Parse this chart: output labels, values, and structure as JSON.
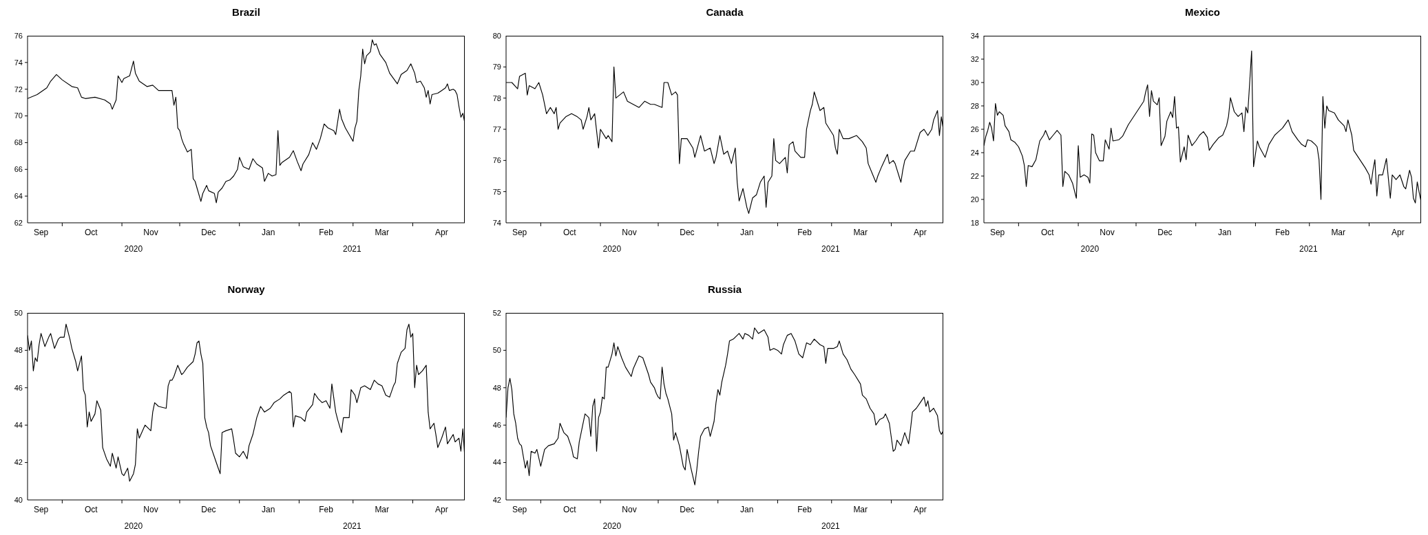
{
  "chart_data": [
    {
      "type": "line",
      "title": "Brazil",
      "color": "#000000",
      "xlim": [
        "2020-09-13",
        "2021-04-28"
      ],
      "ylim": [
        62,
        76
      ],
      "yticks": [
        62,
        64,
        66,
        68,
        70,
        72,
        74,
        76
      ],
      "xticks": [
        {
          "value": "2020-09-20",
          "label": "Sep"
        },
        {
          "value": "2020-10-01",
          "label": null
        },
        {
          "value": "2020-10-16",
          "label": "Oct"
        },
        {
          "value": "2020-11-01",
          "label": null
        },
        {
          "value": "2020-11-16",
          "label": "Nov"
        },
        {
          "value": "2020-12-01",
          "label": null
        },
        {
          "value": "2020-12-16",
          "label": "Dec"
        },
        {
          "value": "2021-01-01",
          "label": null
        },
        {
          "value": "2021-01-16",
          "label": "Jan"
        },
        {
          "value": "2021-02-01",
          "label": null
        },
        {
          "value": "2021-02-15",
          "label": "Feb"
        },
        {
          "value": "2021-03-01",
          "label": null
        },
        {
          "value": "2021-03-16",
          "label": "Mar"
        },
        {
          "value": "2021-04-01",
          "label": null
        },
        {
          "value": "2021-04-16",
          "label": "Apr"
        }
      ],
      "annotations": [
        "2020",
        "2021"
      ],
      "x": [
        "2020-09-13",
        "2020-09-18",
        "2020-09-23",
        "2020-09-25",
        "2020-09-28",
        "2020-10-01",
        "2020-10-06",
        "2020-10-09",
        "2020-10-11",
        "2020-10-13",
        "2020-10-18",
        "2020-10-23",
        "2020-10-26",
        "2020-10-27",
        "2020-10-29",
        "2020-10-30",
        "2020-11-01",
        "2020-11-02",
        "2020-11-05",
        "2020-11-07",
        "2020-11-08",
        "2020-11-10",
        "2020-11-14",
        "2020-11-17",
        "2020-11-20",
        "2020-11-25",
        "2020-11-27",
        "2020-11-28",
        "2020-11-29",
        "2020-11-30",
        "2020-12-01",
        "2020-12-02",
        "2020-12-03",
        "2020-12-05",
        "2020-12-07",
        "2020-12-08",
        "2020-12-09",
        "2020-12-10",
        "2020-12-12",
        "2020-12-13",
        "2020-12-15",
        "2020-12-16",
        "2020-12-19",
        "2020-12-20",
        "2020-12-21",
        "2020-12-23",
        "2020-12-25",
        "2020-12-27",
        "2020-12-29",
        "2020-12-31",
        "2021-01-01",
        "2021-01-03",
        "2021-01-06",
        "2021-01-08",
        "2021-01-10",
        "2021-01-13",
        "2021-01-14",
        "2021-01-16",
        "2021-01-18",
        "2021-01-20",
        "2021-01-21",
        "2021-01-22",
        "2021-01-23",
        "2021-01-27",
        "2021-01-29",
        "2021-01-31",
        "2021-02-02",
        "2021-02-03",
        "2021-02-06",
        "2021-02-08",
        "2021-02-10",
        "2021-02-12",
        "2021-02-14",
        "2021-02-16",
        "2021-02-19",
        "2021-02-20",
        "2021-02-22",
        "2021-02-23",
        "2021-02-25",
        "2021-02-27",
        "2021-03-01",
        "2021-03-02",
        "2021-03-03",
        "2021-03-04",
        "2021-03-05",
        "2021-03-06",
        "2021-03-07",
        "2021-03-08",
        "2021-03-10",
        "2021-03-11",
        "2021-03-12",
        "2021-03-13",
        "2021-03-15",
        "2021-03-18",
        "2021-03-20",
        "2021-03-22",
        "2021-03-24",
        "2021-03-26",
        "2021-03-29",
        "2021-03-31",
        "2021-04-02",
        "2021-04-03",
        "2021-04-05",
        "2021-04-07",
        "2021-04-08",
        "2021-04-09",
        "2021-04-10",
        "2021-04-11",
        "2021-04-14",
        "2021-04-16",
        "2021-04-18",
        "2021-04-19",
        "2021-04-20",
        "2021-04-22",
        "2021-04-23",
        "2021-04-24",
        "2021-04-25",
        "2021-04-26",
        "2021-04-27",
        "2021-04-28"
      ],
      "values": [
        71.3,
        71.6,
        72.1,
        72.6,
        73.1,
        72.7,
        72.2,
        72.1,
        71.4,
        71.3,
        71.4,
        71.2,
        70.9,
        70.5,
        71.2,
        73.0,
        72.5,
        72.8,
        73.0,
        74.1,
        73.2,
        72.6,
        72.2,
        72.3,
        71.9,
        71.9,
        71.9,
        70.8,
        71.4,
        69.1,
        68.9,
        68.3,
        67.9,
        67.3,
        67.5,
        65.3,
        65.1,
        64.6,
        63.6,
        64.2,
        64.8,
        64.4,
        64.2,
        63.5,
        64.3,
        64.6,
        65.1,
        65.2,
        65.5,
        66.0,
        66.9,
        66.2,
        66.0,
        66.8,
        66.4,
        66.1,
        65.1,
        65.7,
        65.5,
        65.6,
        68.9,
        66.3,
        66.5,
        66.9,
        67.4,
        66.6,
        65.9,
        66.4,
        67.1,
        68.0,
        67.5,
        68.3,
        69.4,
        69.1,
        68.9,
        68.6,
        70.5,
        69.8,
        69.1,
        68.6,
        68.1,
        69.1,
        69.6,
        71.9,
        73.0,
        75.0,
        73.9,
        74.5,
        74.8,
        75.7,
        75.3,
        75.4,
        74.6,
        74.0,
        73.2,
        72.8,
        72.4,
        73.1,
        73.4,
        73.9,
        73.2,
        72.5,
        72.6,
        72.1,
        71.4,
        71.9,
        70.9,
        71.6,
        71.7,
        71.9,
        72.1,
        72.4,
        71.9,
        72.0,
        71.9,
        71.6,
        70.7,
        69.9,
        70.2,
        69.5
      ]
    },
    {
      "type": "line",
      "title": "Canada",
      "color": "#000000",
      "xlim": [
        "2020-09-13",
        "2021-04-28"
      ],
      "ylim": [
        74,
        80
      ],
      "yticks": [
        74,
        75,
        76,
        77,
        78,
        79,
        80
      ],
      "xticks": [
        {
          "value": "2020-09-20",
          "label": "Sep"
        },
        {
          "value": "2020-10-01",
          "label": null
        },
        {
          "value": "2020-10-16",
          "label": "Oct"
        },
        {
          "value": "2020-11-01",
          "label": null
        },
        {
          "value": "2020-11-16",
          "label": "Nov"
        },
        {
          "value": "2020-12-01",
          "label": null
        },
        {
          "value": "2020-12-16",
          "label": "Dec"
        },
        {
          "value": "2021-01-01",
          "label": null
        },
        {
          "value": "2021-01-16",
          "label": "Jan"
        },
        {
          "value": "2021-02-01",
          "label": null
        },
        {
          "value": "2021-02-15",
          "label": "Feb"
        },
        {
          "value": "2021-03-01",
          "label": null
        },
        {
          "value": "2021-03-16",
          "label": "Mar"
        },
        {
          "value": "2021-04-01",
          "label": null
        },
        {
          "value": "2021-04-16",
          "label": "Apr"
        }
      ],
      "annotations": [
        "2020",
        "2021"
      ],
      "x": [
        "2020-09-13",
        "2020-09-16",
        "2020-09-19",
        "2020-09-20",
        "2020-09-23",
        "2020-09-24",
        "2020-09-25",
        "2020-09-28",
        "2020-09-30",
        "2020-10-02",
        "2020-10-03",
        "2020-10-04",
        "2020-10-06",
        "2020-10-08",
        "2020-10-09",
        "2020-10-10",
        "2020-10-11",
        "2020-10-14",
        "2020-10-17",
        "2020-10-20",
        "2020-10-22",
        "2020-10-23",
        "2020-10-25",
        "2020-10-26",
        "2020-10-27",
        "2020-10-29",
        "2020-10-31",
        "2020-11-01",
        "2020-11-04",
        "2020-11-05",
        "2020-11-07",
        "2020-11-08",
        "2020-11-09",
        "2020-11-11",
        "2020-11-13",
        "2020-11-15",
        "2020-11-18",
        "2020-11-21",
        "2020-11-24",
        "2020-11-27",
        "2020-11-29",
        "2020-12-03",
        "2020-12-04",
        "2020-12-06",
        "2020-12-08",
        "2020-12-10",
        "2020-12-11",
        "2020-12-12",
        "2020-12-13",
        "2020-12-16",
        "2020-12-19",
        "2020-12-20",
        "2020-12-23",
        "2020-12-25",
        "2020-12-28",
        "2020-12-30",
        "2020-12-31",
        "2021-01-02",
        "2021-01-04",
        "2021-01-06",
        "2021-01-08",
        "2021-01-10",
        "2021-01-11",
        "2021-01-12",
        "2021-01-14",
        "2021-01-16",
        "2021-01-17",
        "2021-01-19",
        "2021-01-21",
        "2021-01-23",
        "2021-01-25",
        "2021-01-26",
        "2021-01-27",
        "2021-01-29",
        "2021-01-30",
        "2021-01-31",
        "2021-02-02",
        "2021-02-05",
        "2021-02-06",
        "2021-02-07",
        "2021-02-09",
        "2021-02-10",
        "2021-02-13",
        "2021-02-15",
        "2021-02-16",
        "2021-02-18",
        "2021-02-19",
        "2021-02-20",
        "2021-02-22",
        "2021-02-23",
        "2021-02-25",
        "2021-02-26",
        "2021-02-28",
        "2021-03-02",
        "2021-03-03",
        "2021-03-04",
        "2021-03-05",
        "2021-03-07",
        "2021-03-10",
        "2021-03-14",
        "2021-03-17",
        "2021-03-19",
        "2021-03-20",
        "2021-03-22",
        "2021-03-24",
        "2021-03-25",
        "2021-03-27",
        "2021-03-30",
        "2021-03-31",
        "2021-04-02",
        "2021-04-03",
        "2021-04-05",
        "2021-04-06",
        "2021-04-07",
        "2021-04-08",
        "2021-04-11",
        "2021-04-13",
        "2021-04-14",
        "2021-04-16",
        "2021-04-18",
        "2021-04-20",
        "2021-04-22",
        "2021-04-23",
        "2021-04-25",
        "2021-04-26",
        "2021-04-27",
        "2021-04-28"
      ],
      "values": [
        78.5,
        78.5,
        78.3,
        78.7,
        78.8,
        78.1,
        78.4,
        78.3,
        78.5,
        78.1,
        77.8,
        77.5,
        77.7,
        77.5,
        77.7,
        77.0,
        77.2,
        77.4,
        77.5,
        77.4,
        77.3,
        77.0,
        77.4,
        77.7,
        77.3,
        77.5,
        76.4,
        77.0,
        76.7,
        76.8,
        76.6,
        79.0,
        78.0,
        78.1,
        78.2,
        77.9,
        77.8,
        77.7,
        77.9,
        77.8,
        77.8,
        77.7,
        78.5,
        78.5,
        78.1,
        78.2,
        78.1,
        75.9,
        76.7,
        76.7,
        76.4,
        76.1,
        76.8,
        76.3,
        76.4,
        75.9,
        76.1,
        76.8,
        76.2,
        76.3,
        75.9,
        76.4,
        75.3,
        74.7,
        75.1,
        74.5,
        74.3,
        74.8,
        74.9,
        75.3,
        75.5,
        74.5,
        75.3,
        75.5,
        76.7,
        76.0,
        75.9,
        76.1,
        75.6,
        76.5,
        76.6,
        76.3,
        76.1,
        76.1,
        77.0,
        77.6,
        77.8,
        78.2,
        77.8,
        77.6,
        77.7,
        77.2,
        77.0,
        76.8,
        76.4,
        76.2,
        77.0,
        76.7,
        76.7,
        76.8,
        76.6,
        76.4,
        75.9,
        75.6,
        75.3,
        75.5,
        75.8,
        76.2,
        75.9,
        76.0,
        75.9,
        75.5,
        75.3,
        75.7,
        76.0,
        76.3,
        76.3,
        76.5,
        76.9,
        77.0,
        76.8,
        77.0,
        77.3,
        77.6,
        76.8,
        77.4,
        77.0
      ]
    },
    {
      "type": "line",
      "title": "Mexico",
      "color": "#000000",
      "xlim": [
        "2020-09-13",
        "2021-04-28"
      ],
      "ylim": [
        18,
        34
      ],
      "yticks": [
        18,
        20,
        22,
        24,
        26,
        28,
        30,
        32,
        34
      ],
      "xticks": [
        {
          "value": "2020-09-20",
          "label": "Sep"
        },
        {
          "value": "2020-10-01",
          "label": null
        },
        {
          "value": "2020-10-16",
          "label": "Oct"
        },
        {
          "value": "2020-11-01",
          "label": null
        },
        {
          "value": "2020-11-16",
          "label": "Nov"
        },
        {
          "value": "2020-12-01",
          "label": null
        },
        {
          "value": "2020-12-16",
          "label": "Dec"
        },
        {
          "value": "2021-01-01",
          "label": null
        },
        {
          "value": "2021-01-16",
          "label": "Jan"
        },
        {
          "value": "2021-02-01",
          "label": null
        },
        {
          "value": "2021-02-15",
          "label": "Feb"
        },
        {
          "value": "2021-03-01",
          "label": null
        },
        {
          "value": "2021-03-16",
          "label": "Mar"
        },
        {
          "value": "2021-04-01",
          "label": null
        },
        {
          "value": "2021-04-16",
          "label": "Apr"
        }
      ],
      "annotations": [
        "2020",
        "2021"
      ],
      "x": [
        "2020-09-13",
        "2020-09-14",
        "2020-09-15",
        "2020-09-16",
        "2020-09-17",
        "2020-09-18",
        "2020-09-19",
        "2020-09-20",
        "2020-09-21",
        "2020-09-23",
        "2020-09-24",
        "2020-09-26",
        "2020-09-27",
        "2020-09-29",
        "2020-10-01",
        "2020-10-03",
        "2020-10-04",
        "2020-10-05",
        "2020-10-06",
        "2020-10-08",
        "2020-10-10",
        "2020-10-12",
        "2020-10-14",
        "2020-10-15",
        "2020-10-17",
        "2020-10-19",
        "2020-10-21",
        "2020-10-23",
        "2020-10-24",
        "2020-10-25",
        "2020-10-27",
        "2020-10-29",
        "2020-10-31",
        "2020-11-01",
        "2020-11-02",
        "2020-11-04",
        "2020-11-06",
        "2020-11-07",
        "2020-11-08",
        "2020-11-09",
        "2020-11-10",
        "2020-11-12",
        "2020-11-14",
        "2020-11-15",
        "2020-11-17",
        "2020-11-18",
        "2020-11-19",
        "2020-11-22",
        "2020-11-24",
        "2020-11-27",
        "2020-12-01",
        "2020-12-03",
        "2020-12-05",
        "2020-12-06",
        "2020-12-07",
        "2020-12-08",
        "2020-12-09",
        "2020-12-10",
        "2020-12-12",
        "2020-12-13",
        "2020-12-14",
        "2020-12-16",
        "2020-12-17",
        "2020-12-19",
        "2020-12-20",
        "2020-12-21",
        "2020-12-22",
        "2020-12-23",
        "2020-12-24",
        "2020-12-26",
        "2020-12-27",
        "2020-12-28",
        "2020-12-30",
        "2021-01-01",
        "2021-01-03",
        "2021-01-05",
        "2021-01-07",
        "2021-01-08",
        "2021-01-10",
        "2021-01-13",
        "2021-01-15",
        "2021-01-17",
        "2021-01-18",
        "2021-01-19",
        "2021-01-21",
        "2021-01-23",
        "2021-01-25",
        "2021-01-26",
        "2021-01-27",
        "2021-01-28",
        "2021-01-29",
        "2021-01-30",
        "2021-01-31",
        "2021-02-02",
        "2021-02-03",
        "2021-02-06",
        "2021-02-08",
        "2021-02-11",
        "2021-02-13",
        "2021-02-15",
        "2021-02-18",
        "2021-02-20",
        "2021-02-23",
        "2021-02-25",
        "2021-02-27",
        "2021-02-28",
        "2021-03-02",
        "2021-03-04",
        "2021-03-05",
        "2021-03-06",
        "2021-03-07",
        "2021-03-08",
        "2021-03-09",
        "2021-03-10",
        "2021-03-11",
        "2021-03-14",
        "2021-03-16",
        "2021-03-19",
        "2021-03-20",
        "2021-03-21",
        "2021-03-23",
        "2021-03-24",
        "2021-03-26",
        "2021-03-28",
        "2021-03-30",
        "2021-04-01",
        "2021-04-02",
        "2021-04-03",
        "2021-04-04",
        "2021-04-05",
        "2021-04-06",
        "2021-04-08",
        "2021-04-10",
        "2021-04-11",
        "2021-04-12",
        "2021-04-13",
        "2021-04-15",
        "2021-04-17",
        "2021-04-19",
        "2021-04-20",
        "2021-04-22",
        "2021-04-23",
        "2021-04-24",
        "2021-04-25",
        "2021-04-26",
        "2021-04-27",
        "2021-04-28"
      ],
      "values": [
        24.6,
        25.4,
        25.9,
        26.6,
        26.1,
        25.0,
        28.2,
        27.2,
        27.5,
        27.2,
        26.3,
        25.8,
        25.1,
        24.9,
        24.5,
        23.7,
        22.9,
        21.1,
        22.9,
        22.8,
        23.4,
        25.0,
        25.5,
        25.9,
        25.1,
        25.5,
        25.9,
        25.5,
        21.1,
        22.4,
        22.1,
        21.4,
        20.1,
        24.6,
        21.9,
        22.1,
        21.9,
        21.4,
        25.6,
        25.5,
        24.0,
        23.3,
        23.3,
        25.1,
        24.3,
        26.1,
        25.0,
        25.1,
        25.4,
        26.4,
        27.4,
        27.9,
        28.4,
        29.2,
        29.8,
        27.1,
        29.3,
        28.4,
        28.1,
        28.7,
        24.6,
        25.4,
        26.7,
        27.5,
        27.0,
        28.8,
        26.1,
        26.2,
        23.2,
        24.5,
        23.4,
        25.5,
        24.6,
        25.0,
        25.5,
        25.8,
        25.3,
        24.2,
        24.7,
        25.3,
        25.5,
        26.3,
        27.1,
        28.7,
        27.5,
        27.1,
        27.4,
        25.8,
        27.9,
        27.4,
        30.0,
        32.7,
        22.8,
        25.0,
        24.5,
        23.6,
        24.7,
        25.5,
        25.8,
        26.1,
        26.8,
        25.8,
        25.1,
        24.7,
        24.5,
        25.1,
        25.0,
        24.7,
        24.5,
        23.4,
        20.0,
        28.8,
        26.1,
        28.0,
        27.6,
        27.4,
        26.8,
        26.3,
        25.8,
        26.8,
        25.5,
        24.2,
        23.7,
        23.2,
        22.7,
        22.1,
        21.3,
        22.5,
        23.4,
        20.3,
        22.1,
        22.1,
        23.5,
        21.8,
        20.1,
        22.1,
        21.7,
        22.1,
        21.1,
        20.9,
        22.5,
        21.9,
        20.1,
        19.7,
        21.5,
        20.6,
        19.8
      ]
    },
    {
      "type": "line",
      "title": "Norway",
      "color": "#000000",
      "xlim": [
        "2020-09-13",
        "2021-04-28"
      ],
      "ylim": [
        40,
        50
      ],
      "yticks": [
        40,
        42,
        44,
        46,
        48,
        50
      ],
      "xticks": [
        {
          "value": "2020-09-20",
          "label": "Sep"
        },
        {
          "value": "2020-10-01",
          "label": null
        },
        {
          "value": "2020-10-16",
          "label": "Oct"
        },
        {
          "value": "2020-11-01",
          "label": null
        },
        {
          "value": "2020-11-16",
          "label": "Nov"
        },
        {
          "value": "2020-12-01",
          "label": null
        },
        {
          "value": "2020-12-16",
          "label": "Dec"
        },
        {
          "value": "2021-01-01",
          "label": null
        },
        {
          "value": "2021-01-16",
          "label": "Jan"
        },
        {
          "value": "2021-02-01",
          "label": null
        },
        {
          "value": "2021-02-15",
          "label": "Feb"
        },
        {
          "value": "2021-03-01",
          "label": null
        },
        {
          "value": "2021-03-16",
          "label": "Mar"
        },
        {
          "value": "2021-04-01",
          "label": null
        },
        {
          "value": "2021-04-16",
          "label": "Apr"
        }
      ],
      "annotations": [
        "2020",
        "2021"
      ],
      "x": [
        "2020-09-13",
        "2020-09-14",
        "2020-09-15",
        "2020-09-16",
        "2020-09-17",
        "2020-09-18",
        "2020-09-19",
        "2020-09-20",
        "2020-09-22",
        "2020-09-24",
        "2020-09-25",
        "2020-09-27",
        "2020-09-29",
        "2020-09-30",
        "2020-10-02",
        "2020-10-03",
        "2020-10-05",
        "2020-10-06",
        "2020-10-08",
        "2020-10-09",
        "2020-10-11",
        "2020-10-12",
        "2020-10-13",
        "2020-10-14",
        "2020-10-15",
        "2020-10-16",
        "2020-10-18",
        "2020-10-19",
        "2020-10-21",
        "2020-10-22",
        "2020-10-24",
        "2020-10-26",
        "2020-10-27",
        "2020-10-29",
        "2020-10-30",
        "2020-11-01",
        "2020-11-02",
        "2020-11-04",
        "2020-11-05",
        "2020-11-07",
        "2020-11-08",
        "2020-11-09",
        "2020-11-10",
        "2020-11-13",
        "2020-11-16",
        "2020-11-17",
        "2020-11-18",
        "2020-11-20",
        "2020-11-24",
        "2020-11-25",
        "2020-11-26",
        "2020-11-27",
        "2020-11-28",
        "2020-11-30",
        "2020-12-02",
        "2020-12-03",
        "2020-12-05",
        "2020-12-08",
        "2020-12-09",
        "2020-12-10",
        "2020-12-11",
        "2020-12-12",
        "2020-12-13",
        "2020-12-14",
        "2020-12-15",
        "2020-12-16",
        "2020-12-17",
        "2020-12-19",
        "2020-12-21",
        "2020-12-22",
        "2020-12-23",
        "2020-12-25",
        "2020-12-28",
        "2020-12-29",
        "2020-12-30",
        "2021-01-01",
        "2021-01-03",
        "2021-01-05",
        "2021-01-06",
        "2021-01-08",
        "2021-01-10",
        "2021-01-12",
        "2021-01-14",
        "2021-01-17",
        "2021-01-19",
        "2021-01-22",
        "2021-01-24",
        "2021-01-27",
        "2021-01-28",
        "2021-01-29",
        "2021-01-30",
        "2021-02-02",
        "2021-02-04",
        "2021-02-05",
        "2021-02-08",
        "2021-02-09",
        "2021-02-11",
        "2021-02-13",
        "2021-02-15",
        "2021-02-17",
        "2021-02-18",
        "2021-02-20",
        "2021-02-21",
        "2021-02-23",
        "2021-02-24",
        "2021-02-27",
        "2021-02-28",
        "2021-03-02",
        "2021-03-03",
        "2021-03-05",
        "2021-03-07",
        "2021-03-10",
        "2021-03-12",
        "2021-03-14",
        "2021-03-16",
        "2021-03-18",
        "2021-03-20",
        "2021-03-22",
        "2021-03-23",
        "2021-03-24",
        "2021-03-26",
        "2021-03-28",
        "2021-03-29",
        "2021-03-30",
        "2021-03-31",
        "2021-04-01",
        "2021-04-02",
        "2021-04-03",
        "2021-04-04",
        "2021-04-06",
        "2021-04-08",
        "2021-04-09",
        "2021-04-10",
        "2021-04-12",
        "2021-04-13",
        "2021-04-14",
        "2021-04-16",
        "2021-04-18",
        "2021-04-19",
        "2021-04-22",
        "2021-04-23",
        "2021-04-25",
        "2021-04-26",
        "2021-04-27",
        "2021-04-28"
      ],
      "values": [
        48.8,
        48.0,
        48.5,
        46.9,
        47.6,
        47.4,
        48.3,
        48.9,
        48.2,
        48.7,
        48.9,
        48.1,
        48.6,
        48.7,
        48.7,
        49.4,
        48.6,
        48.1,
        47.4,
        46.9,
        47.7,
        45.9,
        45.6,
        43.9,
        44.7,
        44.2,
        44.6,
        45.3,
        44.8,
        42.8,
        42.2,
        41.8,
        42.5,
        41.7,
        42.3,
        41.4,
        41.3,
        41.7,
        41.0,
        41.4,
        41.9,
        43.8,
        43.3,
        44.0,
        43.7,
        44.7,
        45.2,
        45.0,
        44.9,
        46.1,
        46.4,
        46.4,
        46.6,
        47.2,
        46.7,
        46.8,
        47.1,
        47.4,
        47.8,
        48.4,
        48.5,
        47.8,
        47.3,
        44.4,
        43.9,
        43.6,
        42.9,
        42.3,
        41.7,
        41.4,
        43.6,
        43.7,
        43.8,
        43.2,
        42.5,
        42.3,
        42.6,
        42.2,
        42.9,
        43.5,
        44.4,
        45.0,
        44.7,
        44.9,
        45.2,
        45.4,
        45.6,
        45.8,
        45.7,
        43.9,
        44.5,
        44.4,
        44.2,
        44.7,
        45.1,
        45.7,
        45.4,
        45.2,
        45.3,
        44.9,
        46.2,
        44.7,
        44.3,
        43.6,
        44.4,
        44.4,
        45.9,
        45.6,
        45.2,
        46.0,
        46.1,
        45.9,
        46.4,
        46.2,
        46.1,
        45.6,
        45.5,
        46.1,
        46.3,
        47.3,
        47.9,
        48.1,
        49.1,
        49.4,
        48.7,
        48.9,
        46.0,
        47.2,
        46.7,
        46.9,
        47.2,
        44.7,
        43.8,
        44.1,
        43.5,
        42.8,
        43.3,
        43.9,
        43.0,
        43.5,
        43.1,
        43.3,
        42.6,
        43.8,
        42.3
      ]
    },
    {
      "type": "line",
      "title": "Russia",
      "color": "#000000",
      "xlim": [
        "2020-09-13",
        "2021-04-28"
      ],
      "ylim": [
        42,
        52
      ],
      "yticks": [
        42,
        44,
        46,
        48,
        50,
        52
      ],
      "xticks": [
        {
          "value": "2020-09-20",
          "label": "Sep"
        },
        {
          "value": "2020-10-01",
          "label": null
        },
        {
          "value": "2020-10-16",
          "label": "Oct"
        },
        {
          "value": "2020-11-01",
          "label": null
        },
        {
          "value": "2020-11-16",
          "label": "Nov"
        },
        {
          "value": "2020-12-01",
          "label": null
        },
        {
          "value": "2020-12-16",
          "label": "Dec"
        },
        {
          "value": "2021-01-01",
          "label": null
        },
        {
          "value": "2021-01-16",
          "label": "Jan"
        },
        {
          "value": "2021-02-01",
          "label": null
        },
        {
          "value": "2021-02-15",
          "label": "Feb"
        },
        {
          "value": "2021-03-01",
          "label": null
        },
        {
          "value": "2021-03-16",
          "label": "Mar"
        },
        {
          "value": "2021-04-01",
          "label": null
        },
        {
          "value": "2021-04-16",
          "label": "Apr"
        }
      ],
      "annotations": [
        "2020",
        "2021"
      ],
      "x": [
        "2020-09-13",
        "2020-09-14",
        "2020-09-15",
        "2020-09-16",
        "2020-09-17",
        "2020-09-18",
        "2020-09-19",
        "2020-09-20",
        "2020-09-21",
        "2020-09-23",
        "2020-09-24",
        "2020-09-25",
        "2020-09-26",
        "2020-09-28",
        "2020-09-29",
        "2020-10-01",
        "2020-10-03",
        "2020-10-05",
        "2020-10-08",
        "2020-10-10",
        "2020-10-11",
        "2020-10-13",
        "2020-10-15",
        "2020-10-17",
        "2020-10-18",
        "2020-10-20",
        "2020-10-21",
        "2020-10-23",
        "2020-10-24",
        "2020-10-26",
        "2020-10-27",
        "2020-10-28",
        "2020-10-29",
        "2020-10-30",
        "2020-10-31",
        "2020-11-01",
        "2020-11-02",
        "2020-11-03",
        "2020-11-04",
        "2020-11-05",
        "2020-11-07",
        "2020-11-08",
        "2020-11-09",
        "2020-11-10",
        "2020-11-12",
        "2020-11-14",
        "2020-11-17",
        "2020-11-18",
        "2020-11-21",
        "2020-11-23",
        "2020-11-26",
        "2020-11-27",
        "2020-11-29",
        "2020-11-30",
        "2020-12-01",
        "2020-12-02",
        "2020-12-03",
        "2020-12-04",
        "2020-12-05",
        "2020-12-06",
        "2020-12-08",
        "2020-12-09",
        "2020-12-10",
        "2020-12-12",
        "2020-12-14",
        "2020-12-15",
        "2020-12-16",
        "2020-12-18",
        "2020-12-20",
        "2020-12-21",
        "2020-12-22",
        "2020-12-23",
        "2020-12-25",
        "2020-12-27",
        "2020-12-28",
        "2020-12-30",
        "2020-12-31",
        "2021-01-01",
        "2021-01-02",
        "2021-01-03",
        "2021-01-05",
        "2021-01-06",
        "2021-01-07",
        "2021-01-09",
        "2021-01-12",
        "2021-01-14",
        "2021-01-15",
        "2021-01-17",
        "2021-01-19",
        "2021-01-20",
        "2021-01-22",
        "2021-01-25",
        "2021-01-27",
        "2021-01-28",
        "2021-01-30",
        "2021-02-01",
        "2021-02-03",
        "2021-02-04",
        "2021-02-06",
        "2021-02-08",
        "2021-02-10",
        "2021-02-12",
        "2021-02-14",
        "2021-02-16",
        "2021-02-18",
        "2021-02-20",
        "2021-02-23",
        "2021-02-25",
        "2021-02-26",
        "2021-02-27",
        "2021-03-02",
        "2021-03-04",
        "2021-03-05",
        "2021-03-07",
        "2021-03-09",
        "2021-03-11",
        "2021-03-13",
        "2021-03-16",
        "2021-03-17",
        "2021-03-19",
        "2021-03-21",
        "2021-03-23",
        "2021-03-24",
        "2021-03-26",
        "2021-03-28",
        "2021-03-29",
        "2021-03-31",
        "2021-04-02",
        "2021-04-03",
        "2021-04-04",
        "2021-04-06",
        "2021-04-08",
        "2021-04-10",
        "2021-04-11",
        "2021-04-12",
        "2021-04-14",
        "2021-04-16",
        "2021-04-18",
        "2021-04-19",
        "2021-04-20",
        "2021-04-21",
        "2021-04-23",
        "2021-04-25",
        "2021-04-26",
        "2021-04-27",
        "2021-04-28"
      ],
      "values": [
        46.4,
        48.0,
        48.5,
        47.9,
        46.6,
        46.1,
        45.3,
        45.0,
        44.9,
        43.7,
        44.1,
        43.3,
        44.6,
        44.5,
        44.7,
        43.8,
        44.7,
        44.9,
        45.0,
        45.3,
        46.1,
        45.6,
        45.4,
        44.8,
        44.3,
        44.2,
        45.1,
        46.1,
        46.6,
        46.4,
        45.4,
        47.0,
        47.4,
        44.6,
        46.4,
        46.7,
        47.5,
        47.4,
        49.1,
        49.1,
        49.8,
        50.4,
        49.7,
        50.2,
        49.6,
        49.1,
        48.6,
        49.0,
        49.7,
        49.6,
        48.7,
        48.3,
        48.0,
        47.7,
        47.5,
        47.4,
        49.1,
        48.2,
        47.7,
        47.4,
        46.6,
        45.2,
        45.6,
        44.9,
        43.8,
        43.6,
        44.7,
        43.7,
        42.8,
        43.6,
        44.6,
        45.4,
        45.8,
        45.9,
        45.4,
        46.2,
        47.2,
        47.9,
        47.6,
        48.3,
        49.2,
        49.8,
        50.5,
        50.6,
        50.9,
        50.6,
        50.9,
        50.8,
        50.6,
        51.2,
        50.9,
        51.1,
        50.7,
        50.0,
        50.1,
        50.0,
        49.8,
        50.3,
        50.8,
        50.9,
        50.5,
        49.8,
        49.6,
        50.4,
        50.3,
        50.6,
        50.3,
        50.2,
        49.3,
        50.1,
        50.1,
        50.2,
        50.5,
        49.8,
        49.5,
        49.0,
        48.7,
        48.2,
        47.6,
        47.4,
        46.9,
        46.6,
        46.0,
        46.3,
        46.4,
        46.6,
        46.1,
        44.6,
        44.7,
        45.2,
        44.9,
        45.6,
        45.0,
        45.8,
        46.7,
        46.9,
        47.2,
        47.5,
        47.0,
        47.3,
        46.7,
        46.9,
        46.5,
        45.7,
        45.5,
        45.7
      ]
    }
  ]
}
